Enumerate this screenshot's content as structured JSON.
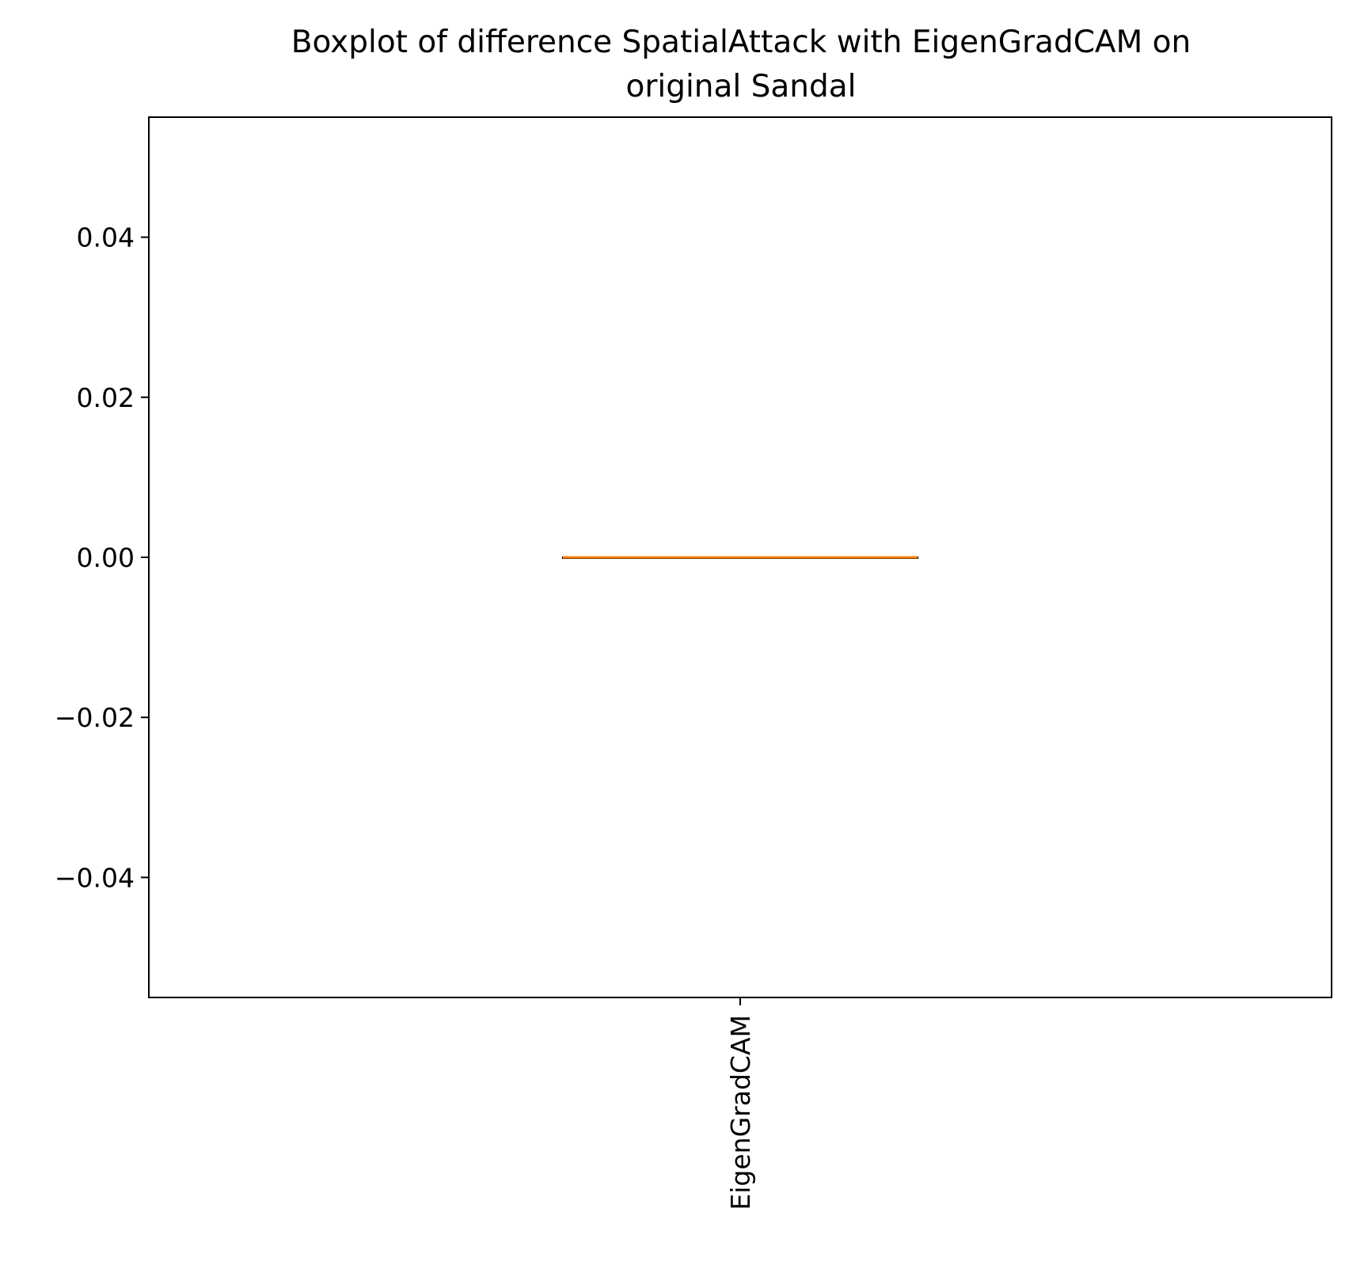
{
  "chart_data": {
    "type": "box",
    "title": "Boxplot of difference SpatialAttack with EigenGradCAM on original Sandal",
    "title_lines": [
      "Boxplot of difference SpatialAttack with EigenGradCAM on",
      "original Sandal"
    ],
    "xlabel": "",
    "ylabel": "",
    "categories": [
      "EigenGradCAM"
    ],
    "boxes": [
      {
        "category": "EigenGradCAM",
        "min": 0.0,
        "q1": 0.0,
        "median": 0.0,
        "q3": 0.0,
        "max": 0.0
      }
    ],
    "ylim": [
      -0.055,
      0.055
    ],
    "yticks": [
      -0.04,
      -0.02,
      0.0,
      0.02,
      0.04
    ],
    "ytick_labels": [
      "−0.04",
      "−0.02",
      "0.00",
      "0.02",
      "0.04"
    ],
    "xtick_rotation": "vertical",
    "grid": false,
    "colors": {
      "median": "#ff7f0e",
      "box": "#000000",
      "axes": "#000000"
    }
  }
}
